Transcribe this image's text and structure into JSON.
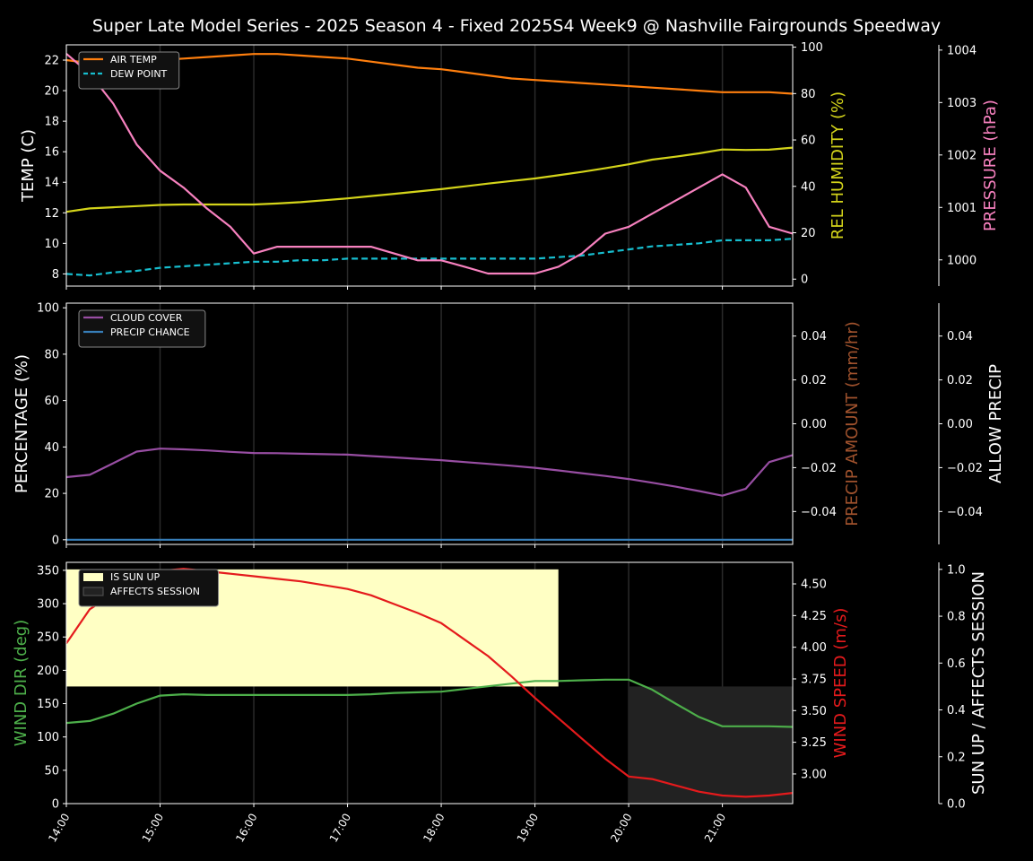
{
  "title": "Super Late Model Series - 2025 Season 4 - Fixed 2025S4 Week9 @ Nashville Fairgrounds Speedway",
  "colors": {
    "background": "#000000",
    "air_temp": "#ff7f0e",
    "dew_point": "#17becf",
    "humidity": "#d4d41a",
    "pressure": "#f781bf",
    "cloud": "#984ea3",
    "precip_chance": "#377eb8",
    "precip_amount_label": "#a0522d",
    "wind_dir": "#4daf4a",
    "wind_speed": "#e41a1c",
    "sun_up": "#ffffc4",
    "affects_session": "#222222"
  },
  "chart_data": [
    {
      "type": "line",
      "panel": "weather",
      "x": [
        "14:00",
        "14:15",
        "14:30",
        "14:45",
        "15:00",
        "15:15",
        "15:30",
        "15:45",
        "16:00",
        "16:15",
        "16:30",
        "16:45",
        "17:00",
        "17:15",
        "17:30",
        "17:45",
        "18:00",
        "18:15",
        "18:30",
        "18:45",
        "19:00",
        "19:15",
        "19:30",
        "19:45",
        "20:00",
        "20:15",
        "20:30",
        "20:45",
        "21:00",
        "21:15",
        "21:30",
        "21:45"
      ],
      "xticks": [
        "14:00",
        "15:00",
        "16:00",
        "17:00",
        "18:00",
        "19:00",
        "20:00",
        "21:00"
      ],
      "ylabel": "TEMP (C)",
      "ylim": [
        7.2,
        23.0
      ],
      "yticks": [
        8,
        10,
        12,
        14,
        16,
        18,
        20,
        22
      ],
      "y2label": "REL HUMIDITY (%)",
      "y2lim": [
        -3,
        101
      ],
      "y2ticks": [
        0,
        20,
        40,
        60,
        80,
        100
      ],
      "y3label": "PRESSURE (hPa)",
      "y3lim": [
        999.5,
        1004.1
      ],
      "y3ticks": [
        1000,
        1001,
        1002,
        1003,
        1004
      ],
      "legend": [
        "AIR TEMP",
        "DEW POINT"
      ],
      "series": [
        {
          "name": "AIR TEMP",
          "axis": "left",
          "style": "solid",
          "values": [
            22.0,
            21.8,
            21.8,
            21.9,
            22.0,
            22.1,
            22.2,
            22.3,
            22.4,
            22.4,
            22.3,
            22.2,
            22.1,
            21.9,
            21.7,
            21.5,
            21.4,
            21.2,
            21.0,
            20.8,
            20.7,
            20.6,
            20.5,
            20.4,
            20.3,
            20.2,
            20.1,
            20.0,
            19.9,
            19.9,
            19.9,
            19.8
          ]
        },
        {
          "name": "DEW POINT",
          "axis": "left",
          "style": "dashed",
          "values": [
            8.0,
            7.9,
            8.1,
            8.2,
            8.4,
            8.5,
            8.6,
            8.7,
            8.8,
            8.8,
            8.9,
            8.9,
            9.0,
            9.0,
            9.0,
            9.0,
            9.0,
            9.0,
            9.0,
            9.0,
            9.0,
            9.1,
            9.2,
            9.4,
            9.6,
            9.8,
            9.9,
            10.0,
            10.2,
            10.2,
            10.2,
            10.3
          ]
        },
        {
          "name": "REL HUMIDITY",
          "axis": "right",
          "style": "solid",
          "values": [
            29,
            30.5,
            31,
            31.5,
            32,
            32.2,
            32.2,
            32.2,
            32.2,
            32.6,
            33.2,
            34,
            34.8,
            35.8,
            36.8,
            37.8,
            38.8,
            40,
            41.2,
            42.3,
            43.4,
            44.8,
            46.2,
            47.8,
            49.5,
            51.5,
            52.8,
            54.2,
            55.9,
            55.7,
            55.8,
            56.7
          ]
        },
        {
          "name": "PRESSURE",
          "axis": "far",
          "style": "solid",
          "values": [
            1003.93,
            1003.55,
            1002.98,
            1002.2,
            1001.7,
            1001.38,
            1000.98,
            1000.63,
            1000.12,
            1000.25,
            1000.25,
            1000.25,
            1000.25,
            1000.25,
            1000.12,
            999.99,
            999.99,
            999.87,
            999.74,
            999.74,
            999.74,
            999.87,
            1000.12,
            1000.5,
            1000.63,
            1000.88,
            1001.13,
            1001.38,
            1001.63,
            1001.38,
            1000.63,
            1000.5
          ]
        }
      ]
    },
    {
      "type": "line",
      "panel": "precip",
      "ylabel": "PERCENTAGE (%)",
      "ylim": [
        -2,
        102
      ],
      "yticks": [
        0,
        20,
        40,
        60,
        80,
        100
      ],
      "y2label": "PRECIP AMOUNT (mm/hr)",
      "y2lim": [
        -0.055,
        0.055
      ],
      "y2ticks": [
        0.04,
        0.02,
        0.0,
        -0.02,
        -0.04
      ],
      "y2ticklabels": [
        "0.04",
        "0.02",
        "0.00",
        "−0.02",
        "−0.04"
      ],
      "y3label": "ALLOW PRECIP",
      "y3ticklabels": [
        "0.04",
        "0.02",
        "0.00",
        "−0.02",
        "−0.04"
      ],
      "legend": [
        "CLOUD COVER",
        "PRECIP CHANCE"
      ],
      "series": [
        {
          "name": "CLOUD COVER",
          "values": [
            27,
            28,
            33,
            38,
            39.3,
            39,
            38.5,
            37.9,
            37.4,
            37.3,
            37.1,
            36.9,
            36.7,
            36.1,
            35.5,
            34.9,
            34.3,
            33.5,
            32.7,
            31.9,
            31.0,
            29.9,
            28.7,
            27.5,
            26.2,
            24.6,
            22.9,
            21.0,
            19.0,
            22.0,
            33.5,
            36.5
          ]
        },
        {
          "name": "PRECIP CHANCE",
          "values": [
            0,
            0,
            0,
            0,
            0,
            0,
            0,
            0,
            0,
            0,
            0,
            0,
            0,
            0,
            0,
            0,
            0,
            0,
            0,
            0,
            0,
            0,
            0,
            0,
            0,
            0,
            0,
            0,
            0,
            0,
            0,
            0
          ]
        }
      ]
    },
    {
      "type": "line",
      "panel": "wind",
      "ylabel": "WIND DIR (deg)",
      "ylim": [
        0,
        362
      ],
      "yticks": [
        0,
        50,
        100,
        150,
        200,
        250,
        300,
        350
      ],
      "y2label": "WIND SPEED (m/s)",
      "y2lim": [
        2.766,
        4.67
      ],
      "y2ticks": [
        3.0,
        3.25,
        3.5,
        3.75,
        4.0,
        4.25,
        4.5
      ],
      "y2ticklabels": [
        "3.00",
        "3.25",
        "3.50",
        "3.75",
        "4.00",
        "4.25",
        "4.50"
      ],
      "y3label": "SUN UP / AFFECTS SESSION",
      "y3lim": [
        0,
        1.03
      ],
      "y3ticks": [
        0,
        0.2,
        0.4,
        0.6,
        0.8,
        1.0
      ],
      "y3ticklabels": [
        "0.0",
        "0.2",
        "0.4",
        "0.6",
        "0.8",
        "1.0"
      ],
      "legend": [
        "IS SUN UP",
        "AFFECTS SESSION"
      ],
      "sun_up": {
        "from": "14:00",
        "to": "19:15",
        "low": 0.5,
        "high": 1.0
      },
      "affects_session": {
        "from": "20:00",
        "to": "21:45",
        "low": 0,
        "high": 0.5
      },
      "series": [
        {
          "name": "WIND DIR",
          "axis": "left",
          "values": [
            121,
            124,
            135,
            150,
            162,
            164,
            163,
            163,
            163,
            163,
            163,
            163,
            163,
            164,
            166,
            167,
            168,
            172,
            176,
            180,
            184,
            184,
            185,
            186,
            186,
            171,
            150,
            130,
            116,
            116,
            116,
            115
          ]
        },
        {
          "name": "WIND SPEED",
          "axis": "right",
          "values": [
            4.03,
            4.3,
            4.42,
            4.53,
            4.6,
            4.62,
            4.6,
            4.58,
            4.56,
            4.54,
            4.52,
            4.49,
            4.46,
            4.41,
            4.34,
            4.27,
            4.19,
            4.06,
            3.93,
            3.77,
            3.6,
            3.44,
            3.28,
            3.12,
            2.98,
            2.96,
            2.91,
            2.86,
            2.83,
            2.82,
            2.83,
            2.85
          ]
        }
      ]
    }
  ]
}
